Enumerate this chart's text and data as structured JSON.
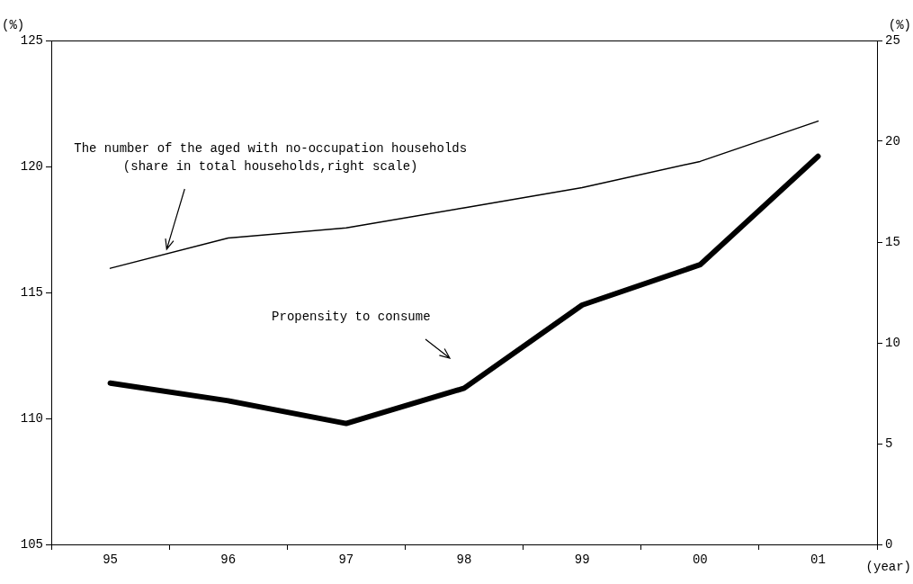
{
  "chart_data": {
    "type": "line",
    "categories": [
      "95",
      "96",
      "97",
      "98",
      "99",
      "00",
      "01"
    ],
    "series": [
      {
        "color": "#000000",
        "values": [
          13.7,
          15.2,
          15.7,
          16.7,
          17.7,
          19.0,
          21.0
        ],
        "axis": "y2"
      },
      {
        "color": "#000000",
        "values": [
          111.4,
          110.7,
          109.8,
          111.2,
          114.5,
          116.1,
          120.4
        ]
      }
    ],
    "ylim": [
      105,
      125
    ],
    "yticks": [
      105,
      110,
      115,
      120,
      125
    ],
    "y2lim": [
      0,
      25
    ],
    "y2ticks": [
      0,
      5,
      10,
      15,
      20,
      25
    ],
    "ylabel": "(%)",
    "y2label": "(%)",
    "xlabel": "(year)",
    "grid": false,
    "legend": false,
    "marker": "none",
    "line_style": "solid",
    "annotations": [
      "The number of the aged with no-occupation households\n(share in total households,right scale)",
      "Propensity to consume"
    ]
  }
}
